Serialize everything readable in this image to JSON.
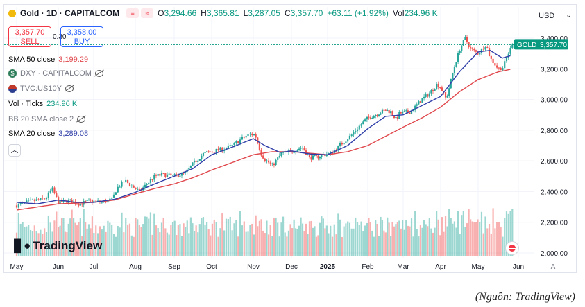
{
  "header": {
    "symbol": "Gold · 1D · CAPITALCOM",
    "open_label": "O",
    "open": "3,294.66",
    "high_label": "H",
    "high": "3,365.81",
    "low_label": "L",
    "low": "3,287.05",
    "close_label": "C",
    "close": "3,357.70",
    "change": "+63.11 (+1.92%)",
    "vol_label": "Vol",
    "vol": "234.96 K"
  },
  "trade": {
    "sell_price": "3,357.70",
    "sell_label": "SELL",
    "spread": "0.30",
    "buy_price": "3,358.00",
    "buy_label": "BUY"
  },
  "indicators": {
    "sma50_label": "SMA 50 close",
    "sma50_value": "3,199.29",
    "dxy_label": "DXY · CAPITALCOM",
    "tvc_label": "TVC:US10Y",
    "vol_label": "Vol · Ticks",
    "vol_value": "234.96 K",
    "bb_label": "BB 20 SMA close 2",
    "sma20_label": "SMA 20 close",
    "sma20_value": "3,289.08"
  },
  "price_tag": {
    "label": "GOLD",
    "value": "3,357.70"
  },
  "currency": "USD",
  "logo": "TradingView",
  "source": "(Nguồn: TradingView)",
  "colors": {
    "up": "#26a69a",
    "down": "#ef5350",
    "sma20": "#2f3ea8",
    "sma50": "#e0474c",
    "tag": "#089981"
  },
  "chart_data": {
    "type": "candlestick",
    "y_ticks": [
      "3,400.00",
      "3,200.00",
      "3,000.00",
      "2,800.00",
      "2,600.00",
      "2,400.00",
      "2,200.00",
      "2,000.00"
    ],
    "y_tick_values": [
      3400,
      3200,
      3000,
      2800,
      2600,
      2400,
      2200,
      2000
    ],
    "ylim": [
      2000,
      3455
    ],
    "x_ticks": [
      "May",
      "Jun",
      "Jul",
      "Aug",
      "Sep",
      "Oct",
      "Nov",
      "Dec",
      "2025",
      "Feb",
      "Mar",
      "Apr",
      "May",
      "Jun"
    ],
    "x_tick_months": [
      0,
      1,
      2,
      3,
      4,
      5,
      6,
      7,
      8,
      9,
      10,
      11,
      12,
      13
    ],
    "price_anchors": [
      [
        0,
        2310
      ],
      [
        0.3,
        2335
      ],
      [
        0.7,
        2355
      ],
      [
        0.85,
        2420
      ],
      [
        1.0,
        2330
      ],
      [
        1.3,
        2340
      ],
      [
        1.6,
        2320
      ],
      [
        1.9,
        2340
      ],
      [
        2.2,
        2330
      ],
      [
        2.45,
        2350
      ],
      [
        2.55,
        2420
      ],
      [
        2.75,
        2470
      ],
      [
        3.0,
        2420
      ],
      [
        3.1,
        2400
      ],
      [
        3.3,
        2450
      ],
      [
        3.5,
        2500
      ],
      [
        3.7,
        2510
      ],
      [
        4.0,
        2500
      ],
      [
        4.3,
        2520
      ],
      [
        4.5,
        2580
      ],
      [
        4.8,
        2650
      ],
      [
        5.0,
        2660
      ],
      [
        5.3,
        2680
      ],
      [
        5.5,
        2700
      ],
      [
        5.7,
        2740
      ],
      [
        5.9,
        2775
      ],
      [
        6.05,
        2770
      ],
      [
        6.2,
        2650
      ],
      [
        6.3,
        2610
      ],
      [
        6.5,
        2570
      ],
      [
        6.75,
        2650
      ],
      [
        7.0,
        2660
      ],
      [
        7.3,
        2690
      ],
      [
        7.5,
        2620
      ],
      [
        7.7,
        2625
      ],
      [
        7.9,
        2640
      ],
      [
        8.1,
        2650
      ],
      [
        8.3,
        2700
      ],
      [
        8.6,
        2770
      ],
      [
        8.8,
        2830
      ],
      [
        9.0,
        2880
      ],
      [
        9.2,
        2900
      ],
      [
        9.5,
        2930
      ],
      [
        9.65,
        2920
      ],
      [
        9.8,
        2870
      ],
      [
        9.9,
        2910
      ],
      [
        10.2,
        2920
      ],
      [
        10.5,
        3000
      ],
      [
        10.7,
        3040
      ],
      [
        10.9,
        3100
      ],
      [
        11.0,
        3080
      ],
      [
        11.15,
        3000
      ],
      [
        11.35,
        3200
      ],
      [
        11.5,
        3320
      ],
      [
        11.65,
        3400
      ],
      [
        11.8,
        3330
      ],
      [
        12.0,
        3300
      ],
      [
        12.2,
        3360
      ],
      [
        12.3,
        3270
      ],
      [
        12.5,
        3200
      ],
      [
        12.62,
        3210
      ],
      [
        12.75,
        3300
      ],
      [
        12.85,
        3357.7
      ]
    ],
    "sma20_anchors": [
      [
        0,
        2330
      ],
      [
        0.5,
        2320
      ],
      [
        1.0,
        2345
      ],
      [
        1.5,
        2330
      ],
      [
        2.0,
        2330
      ],
      [
        2.5,
        2350
      ],
      [
        3.0,
        2395
      ],
      [
        3.5,
        2450
      ],
      [
        4.0,
        2500
      ],
      [
        4.5,
        2550
      ],
      [
        5.0,
        2640
      ],
      [
        5.5,
        2690
      ],
      [
        6.0,
        2745
      ],
      [
        6.3,
        2700
      ],
      [
        6.7,
        2655
      ],
      [
        7.0,
        2665
      ],
      [
        7.5,
        2645
      ],
      [
        8.0,
        2640
      ],
      [
        8.5,
        2700
      ],
      [
        9.0,
        2810
      ],
      [
        9.5,
        2890
      ],
      [
        10.0,
        2900
      ],
      [
        10.5,
        2960
      ],
      [
        11.0,
        3020
      ],
      [
        11.5,
        3180
      ],
      [
        12.0,
        3310
      ],
      [
        12.3,
        3320
      ],
      [
        12.6,
        3270
      ],
      [
        12.85,
        3289.08
      ]
    ],
    "sma50_anchors": [
      [
        0,
        2280
      ],
      [
        0.5,
        2300
      ],
      [
        1.0,
        2320
      ],
      [
        1.5,
        2325
      ],
      [
        2.0,
        2330
      ],
      [
        2.5,
        2345
      ],
      [
        3.0,
        2385
      ],
      [
        3.5,
        2420
      ],
      [
        4.0,
        2450
      ],
      [
        4.5,
        2490
      ],
      [
        5.0,
        2540
      ],
      [
        5.5,
        2590
      ],
      [
        6.0,
        2640
      ],
      [
        6.5,
        2660
      ],
      [
        7.0,
        2660
      ],
      [
        7.5,
        2650
      ],
      [
        8.0,
        2640
      ],
      [
        8.5,
        2660
      ],
      [
        9.0,
        2700
      ],
      [
        9.5,
        2760
      ],
      [
        10.0,
        2820
      ],
      [
        10.5,
        2880
      ],
      [
        11.0,
        2950
      ],
      [
        11.5,
        3050
      ],
      [
        12.0,
        3130
      ],
      [
        12.5,
        3180
      ],
      [
        12.85,
        3199.29
      ]
    ],
    "last_price": 3357.7
  }
}
